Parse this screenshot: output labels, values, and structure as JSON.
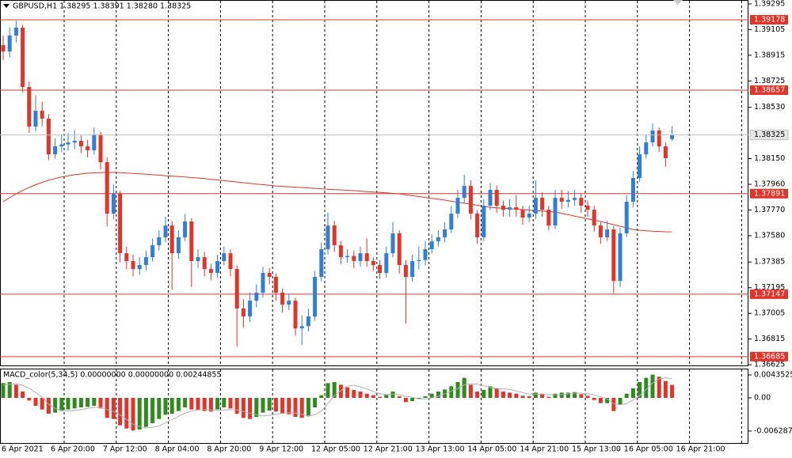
{
  "chart_data": [
    {
      "type": "candlestick",
      "title": "GBPUSD,H1  1.38295 1.38391 1.38280 1.38325",
      "up_color": "#2f7fd9",
      "down_color": "#e3342a",
      "ylim": [
        1.36602,
        1.39324
      ],
      "yticks": [
        1.39295,
        1.39105,
        1.38915,
        1.38725,
        {
          "value": 1.3853,
          "label": "1.38530"
        },
        {
          "value": 1.3815,
          "label": "1.38150"
        },
        {
          "value": 1.3796,
          "label": "1.37960"
        },
        {
          "value": 1.3777,
          "label": "1.37770"
        },
        {
          "value": 1.3758,
          "label": "1.37580"
        },
        1.37385,
        1.37195,
        1.37005,
        1.36815,
        1.36625
      ],
      "levels": [
        1.39178,
        1.38657,
        1.37891,
        1.37147,
        1.36685
      ],
      "level_color": "#e3342a",
      "xtick_labels": [
        "6 Apr 2021",
        "6 Apr 20:00",
        "7 Apr 12:00",
        "8 Apr 04:00",
        "8 Apr 20:00",
        "9 Apr 12:00",
        "12 Apr 05:00",
        "12 Apr 21:00",
        "13 Apr 13:00",
        "14 Apr 05:00",
        "14 Apr 21:00",
        "15 Apr 13:00",
        "16 Apr 05:00",
        "16 Apr 21:00"
      ],
      "ohlc": [
        [
          1.3899,
          1.3906,
          1.3888,
          1.38943
        ],
        [
          1.38943,
          1.3912,
          1.389,
          1.39061
        ],
        [
          1.39061,
          1.3917,
          1.3901,
          1.39119
        ],
        [
          1.39119,
          1.3914,
          1.3864,
          1.3868
        ],
        [
          1.3868,
          1.3872,
          1.3834,
          1.38387
        ],
        [
          1.38387,
          1.3862,
          1.3835,
          1.38504
        ],
        [
          1.38504,
          1.3857,
          1.3839,
          1.38446
        ],
        [
          1.38446,
          1.3848,
          1.3814,
          1.38182
        ],
        [
          1.38182,
          1.383,
          1.3815,
          1.38241
        ],
        [
          1.38241,
          1.3833,
          1.382,
          1.38255
        ],
        [
          1.38255,
          1.3834,
          1.3821,
          1.3827
        ],
        [
          1.3827,
          1.3836,
          1.3822,
          1.38282
        ],
        [
          1.38282,
          1.3832,
          1.3819,
          1.38241
        ],
        [
          1.38241,
          1.3829,
          1.3816,
          1.38212
        ],
        [
          1.38212,
          1.3838,
          1.3818,
          1.38329
        ],
        [
          1.38329,
          1.3835,
          1.3807,
          1.38124
        ],
        [
          1.38124,
          1.3816,
          1.3765,
          1.37743
        ],
        [
          1.37743,
          1.3796,
          1.377,
          1.3789
        ],
        [
          1.3789,
          1.3791,
          1.3738,
          1.3745
        ],
        [
          1.3745,
          1.375,
          1.3733,
          1.37392
        ],
        [
          1.37392,
          1.3744,
          1.3728,
          1.37333
        ],
        [
          1.37333,
          1.3742,
          1.3729,
          1.37363
        ],
        [
          1.37363,
          1.3747,
          1.3732,
          1.37421
        ],
        [
          1.37421,
          1.3756,
          1.3739,
          1.37509
        ],
        [
          1.37509,
          1.3762,
          1.3747,
          1.37568
        ],
        [
          1.37568,
          1.3772,
          1.3753,
          1.37655
        ],
        [
          1.37655,
          1.3769,
          1.3718,
          1.3745
        ],
        [
          1.3745,
          1.3762,
          1.3741,
          1.37568
        ],
        [
          1.37568,
          1.3774,
          1.3754,
          1.37685
        ],
        [
          1.37685,
          1.3771,
          1.372,
          1.37392
        ],
        [
          1.37392,
          1.3748,
          1.3734,
          1.37421
        ],
        [
          1.37421,
          1.3746,
          1.3728,
          1.37333
        ],
        [
          1.37333,
          1.3737,
          1.3725,
          1.37304
        ],
        [
          1.37304,
          1.3744,
          1.3727,
          1.37392
        ],
        [
          1.37392,
          1.375,
          1.3736,
          1.3745
        ],
        [
          1.3745,
          1.3748,
          1.3728,
          1.37333
        ],
        [
          1.37333,
          1.3736,
          1.3676,
          1.37041
        ],
        [
          1.37041,
          1.3711,
          1.369,
          1.36982
        ],
        [
          1.36982,
          1.3716,
          1.3694,
          1.37099
        ],
        [
          1.37099,
          1.3722,
          1.3705,
          1.37158
        ],
        [
          1.37158,
          1.3735,
          1.3712,
          1.37304
        ],
        [
          1.37304,
          1.3734,
          1.3722,
          1.37275
        ],
        [
          1.37275,
          1.373,
          1.371,
          1.37158
        ],
        [
          1.37158,
          1.3719,
          1.3701,
          1.3707
        ],
        [
          1.3707,
          1.3715,
          1.3703,
          1.37099
        ],
        [
          1.37099,
          1.3712,
          1.3684,
          1.36894
        ],
        [
          1.36894,
          1.3699,
          1.3677,
          1.3691
        ],
        [
          1.3691,
          1.3704,
          1.3687,
          1.36982
        ],
        [
          1.36982,
          1.3732,
          1.3695,
          1.37275
        ],
        [
          1.37275,
          1.3753,
          1.3724,
          1.3748
        ],
        [
          1.3748,
          1.3775,
          1.3744,
          1.37655
        ],
        [
          1.37655,
          1.3769,
          1.3746,
          1.37509
        ],
        [
          1.37509,
          1.3754,
          1.3737,
          1.37421
        ],
        [
          1.37421,
          1.3748,
          1.3738,
          1.3743
        ],
        [
          1.3743,
          1.3747,
          1.3734,
          1.37392
        ],
        [
          1.37392,
          1.375,
          1.3735,
          1.3745
        ],
        [
          1.3745,
          1.3756,
          1.3735,
          1.37392
        ],
        [
          1.37392,
          1.3742,
          1.3732,
          1.37363
        ],
        [
          1.37363,
          1.374,
          1.3726,
          1.37304
        ],
        [
          1.37304,
          1.375,
          1.3727,
          1.3745
        ],
        [
          1.3745,
          1.3768,
          1.3742,
          1.37597
        ],
        [
          1.37597,
          1.3762,
          1.373,
          1.37363
        ],
        [
          1.37363,
          1.374,
          1.3693,
          1.37275
        ],
        [
          1.37275,
          1.3744,
          1.3724,
          1.37392
        ],
        [
          1.37392,
          1.375,
          1.3733,
          1.374
        ],
        [
          1.374,
          1.3754,
          1.3736,
          1.3748
        ],
        [
          1.3748,
          1.3759,
          1.3745,
          1.37538
        ],
        [
          1.37538,
          1.3762,
          1.375,
          1.37568
        ],
        [
          1.37568,
          1.3768,
          1.3753,
          1.37626
        ],
        [
          1.37626,
          1.378,
          1.376,
          1.37743
        ],
        [
          1.37743,
          1.3792,
          1.3771,
          1.3786
        ],
        [
          1.3786,
          1.3803,
          1.3782,
          1.37948
        ],
        [
          1.37948,
          1.3799,
          1.377,
          1.37743
        ],
        [
          1.37743,
          1.3777,
          1.3752,
          1.37568
        ],
        [
          1.37568,
          1.3785,
          1.3754,
          1.37802
        ],
        [
          1.37802,
          1.3797,
          1.3777,
          1.37919
        ],
        [
          1.37919,
          1.3795,
          1.3775,
          1.37802
        ],
        [
          1.37802,
          1.3784,
          1.3772,
          1.37772
        ],
        [
          1.37772,
          1.3785,
          1.3772,
          1.3779
        ],
        [
          1.3779,
          1.3788,
          1.3772,
          1.37772
        ],
        [
          1.37772,
          1.378,
          1.3766,
          1.37714
        ],
        [
          1.37714,
          1.378,
          1.3768,
          1.37743
        ],
        [
          1.37743,
          1.3799,
          1.377,
          1.3786
        ],
        [
          1.3786,
          1.379,
          1.3772,
          1.37772
        ],
        [
          1.37772,
          1.378,
          1.3762,
          1.37655
        ],
        [
          1.37655,
          1.3792,
          1.3763,
          1.3786
        ],
        [
          1.3786,
          1.3792,
          1.3778,
          1.37831
        ],
        [
          1.37831,
          1.3791,
          1.3779,
          1.37845
        ],
        [
          1.37845,
          1.3792,
          1.378,
          1.3786
        ],
        [
          1.3786,
          1.3789,
          1.3775,
          1.37802
        ],
        [
          1.37802,
          1.3784,
          1.3772,
          1.37772
        ],
        [
          1.37772,
          1.378,
          1.3761,
          1.37655
        ],
        [
          1.37655,
          1.3768,
          1.3752,
          1.37568
        ],
        [
          1.37568,
          1.3769,
          1.3754,
          1.37626
        ],
        [
          1.37626,
          1.3765,
          1.3715,
          1.37245
        ],
        [
          1.37245,
          1.3764,
          1.372,
          1.37597
        ],
        [
          1.37597,
          1.3788,
          1.3757,
          1.37831
        ],
        [
          1.37831,
          1.3806,
          1.3779,
          1.38007
        ],
        [
          1.38007,
          1.3824,
          1.3798,
          1.38182
        ],
        [
          1.38182,
          1.3833,
          1.3815,
          1.3827
        ],
        [
          1.3827,
          1.3841,
          1.3824,
          1.38358
        ],
        [
          1.38358,
          1.3838,
          1.382,
          1.38241
        ],
        [
          1.38241,
          1.3827,
          1.3809,
          1.38153
        ],
        [
          1.38295,
          1.38391,
          1.3828,
          1.38325
        ]
      ],
      "ma": {
        "color": "#e3342a",
        "values": [
          1.37831,
          1.37862,
          1.3789,
          1.37915,
          1.37937,
          1.37957,
          1.37975,
          1.3799,
          1.38003,
          1.38014,
          1.38023,
          1.38031,
          1.38037,
          1.38042,
          1.38045,
          1.38047,
          1.38048,
          1.38048,
          1.38047,
          1.38044,
          1.38041,
          1.38038,
          1.38035,
          1.38031,
          1.38028,
          1.38024,
          1.38021,
          1.38017,
          1.38014,
          1.3801,
          1.38007,
          1.38002,
          1.37997,
          1.37992,
          1.37987,
          1.37982,
          1.37977,
          1.37972,
          1.37967,
          1.37962,
          1.37957,
          1.37953,
          1.37948,
          1.37945,
          1.37942,
          1.37939,
          1.37936,
          1.37933,
          1.3793,
          1.37927,
          1.37924,
          1.37921,
          1.37919,
          1.37916,
          1.37913,
          1.3791,
          1.37906,
          1.37903,
          1.379,
          1.37897,
          1.37893,
          1.3789,
          1.37883,
          1.37876,
          1.3787,
          1.37863,
          1.37856,
          1.3785,
          1.37843,
          1.37835,
          1.37828,
          1.3782,
          1.37813,
          1.37805,
          1.37798,
          1.3779,
          1.37786,
          1.37783,
          1.37779,
          1.37776,
          1.37772,
          1.37769,
          1.37765,
          1.37762,
          1.37758,
          1.37755,
          1.37745,
          1.37735,
          1.37725,
          1.37715,
          1.37705,
          1.37695,
          1.37685,
          1.37673,
          1.37661,
          1.3765,
          1.37638,
          1.37626,
          1.3762,
          1.37616,
          1.37613,
          1.37611,
          1.37609,
          1.37608
        ]
      }
    },
    {
      "type": "macd",
      "title": "MACD_color(5,34,5) 0.00000000 0.00000000 0.00244855",
      "up_color": "#2e8b1e",
      "down_color": "#e3342a",
      "signal_color": "#b0b0b0",
      "ylim": [
        -0.00855,
        0.00555
      ],
      "yticks": [
        0.0043525,
        {
          "value": 0,
          "label": "0.00"
        },
        -0.0062873
      ],
      "values": [
        0.0028,
        0.003,
        0.0025,
        0.0012,
        -0.0005,
        -0.0015,
        -0.0022,
        -0.003,
        -0.0028,
        -0.0025,
        -0.0022,
        -0.002,
        -0.0018,
        -0.0017,
        -0.0015,
        -0.002,
        -0.0038,
        -0.004,
        -0.0052,
        -0.0058,
        -0.0062,
        -0.006,
        -0.0055,
        -0.0048,
        -0.004,
        -0.0032,
        -0.003,
        -0.0025,
        -0.0018,
        -0.0022,
        -0.0023,
        -0.0025,
        -0.0026,
        -0.0022,
        -0.0018,
        -0.002,
        -0.003,
        -0.0038,
        -0.004,
        -0.0036,
        -0.0028,
        -0.0024,
        -0.0026,
        -0.003,
        -0.0031,
        -0.0036,
        -0.0038,
        -0.0035,
        -0.0018,
        0.0005,
        0.0028,
        0.003,
        0.0025,
        0.002,
        0.0015,
        0.0012,
        0.0008,
        0.0005,
        0.0002,
        0.0006,
        0.0012,
        0.0003,
        -0.0008,
        -0.0006,
        -0.0002,
        0.0003,
        0.0008,
        0.0012,
        0.0016,
        0.0022,
        0.003,
        0.0038,
        0.0025,
        0.0012,
        0.0015,
        0.0022,
        0.0018,
        0.0012,
        0.001,
        0.0008,
        0.0004,
        0.0003,
        0.001,
        0.0008,
        0.0002,
        0.0008,
        0.001,
        0.001,
        0.0011,
        0.0007,
        0.0004,
        -0.0004,
        -0.001,
        -0.001,
        -0.0025,
        -0.0012,
        0.0008,
        0.0018,
        0.003,
        0.0038,
        0.0044,
        0.004,
        0.0032,
        0.00244855
      ],
      "signal": [
        0.0024,
        0.0026,
        0.0027,
        0.0024,
        0.0018,
        0.001,
        0.0001,
        -0.0012,
        -0.002,
        -0.0024,
        -0.0025,
        -0.0024,
        -0.0022,
        -0.002,
        -0.0018,
        -0.0018,
        -0.0022,
        -0.0026,
        -0.0032,
        -0.0041,
        -0.005,
        -0.0054,
        -0.0057,
        -0.0056,
        -0.0053,
        -0.0047,
        -0.0041,
        -0.0035,
        -0.0029,
        -0.0025,
        -0.0023,
        -0.0022,
        -0.0023,
        -0.0024,
        -0.0023,
        -0.0022,
        -0.0023,
        -0.0026,
        -0.0029,
        -0.0032,
        -0.0034,
        -0.0033,
        -0.0031,
        -0.0029,
        -0.0028,
        -0.0029,
        -0.0031,
        -0.0034,
        -0.0032,
        -0.0025,
        -0.0011,
        0.0004,
        0.0014,
        0.0022,
        0.0024,
        0.0021,
        0.0017,
        0.0012,
        0.0008,
        0.0006,
        0.0007,
        0.0006,
        0.0003,
        0.0001,
        -0.0002,
        -0.0002,
        0,
        0.0003,
        0.0008,
        0.0013,
        0.0018,
        0.0025,
        0.0027,
        0.0026,
        0.0023,
        0.002,
        0.0018,
        0.0017,
        0.0016,
        0.0013,
        0.001,
        0.0007,
        0.0007,
        0.0007,
        0.0006,
        0.0006,
        0.0006,
        0.0008,
        0.0009,
        0.0009,
        0.0008,
        0.0006,
        0.0002,
        -0.0002,
        -0.0011,
        -0.0013,
        -0.0011,
        -0.0004,
        0.0004,
        0.0016,
        0.0028,
        0.0036,
        0.0038,
        0.0036
      ]
    }
  ]
}
